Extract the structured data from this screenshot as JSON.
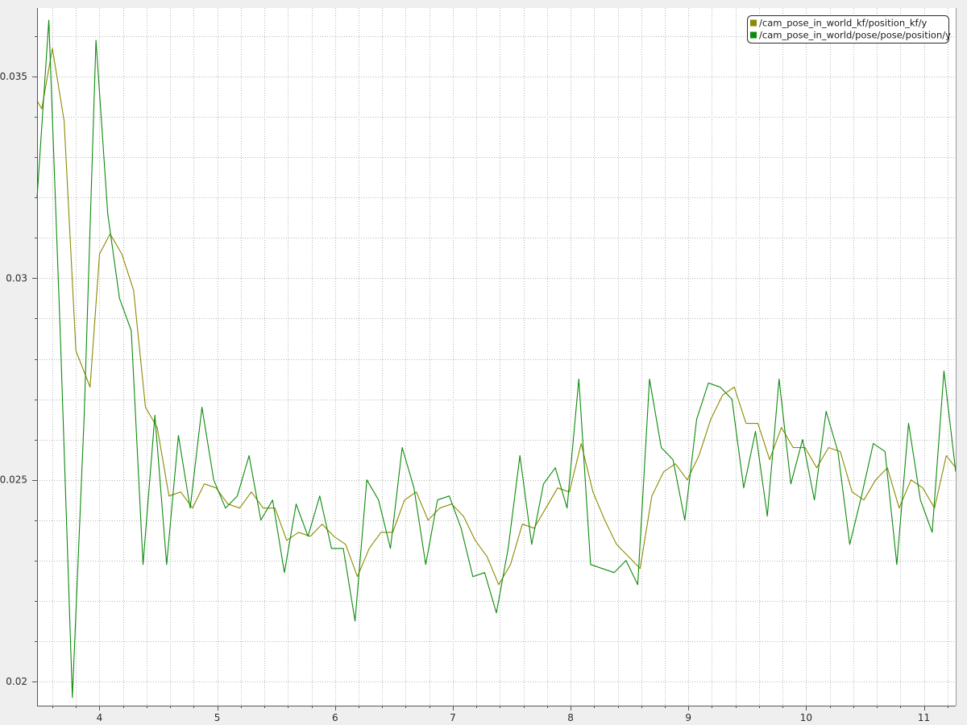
{
  "chart_data": {
    "type": "line",
    "title": "",
    "xlabel": "",
    "ylabel": "",
    "xlim": [
      3.47,
      11.27
    ],
    "ylim": [
      0.0194,
      0.0367
    ],
    "grid": true,
    "legend_position": "top-right",
    "x_ticks": [
      4,
      5,
      6,
      7,
      8,
      9,
      10,
      11
    ],
    "x_tick_labels": [
      "4",
      "5",
      "6",
      "7",
      "8",
      "9",
      "10",
      "11"
    ],
    "y_ticks": [
      0.02,
      0.025,
      0.03,
      0.035
    ],
    "y_tick_labels": [
      "0.02",
      "0.025",
      "0.03",
      "0.035"
    ],
    "series": [
      {
        "name": "/cam_pose_in_world_kf/position_kf/y",
        "color": "#8a8a00",
        "x": [
          3.47,
          3.51,
          3.6,
          3.7,
          3.8,
          3.92,
          4.0,
          4.09,
          4.19,
          4.29,
          4.39,
          4.49,
          4.59,
          4.69,
          4.79,
          4.89,
          4.99,
          5.09,
          5.19,
          5.29,
          5.39,
          5.49,
          5.59,
          5.69,
          5.79,
          5.89,
          5.99,
          6.09,
          6.19,
          6.29,
          6.39,
          6.49,
          6.59,
          6.69,
          6.79,
          6.89,
          6.99,
          7.09,
          7.19,
          7.29,
          7.39,
          7.49,
          7.59,
          7.69,
          7.79,
          7.89,
          7.99,
          8.09,
          8.19,
          8.29,
          8.39,
          8.49,
          8.59,
          8.69,
          8.79,
          8.89,
          8.99,
          9.09,
          9.19,
          9.29,
          9.39,
          9.49,
          9.59,
          9.69,
          9.79,
          9.89,
          9.99,
          10.09,
          10.19,
          10.29,
          10.39,
          10.49,
          10.59,
          10.69,
          10.79,
          10.89,
          10.99,
          11.09,
          11.19,
          11.27
        ],
        "y": [
          0.0344,
          0.0342,
          0.0357,
          0.0339,
          0.0282,
          0.0273,
          0.0306,
          0.0311,
          0.0306,
          0.0297,
          0.0268,
          0.0263,
          0.0246,
          0.0247,
          0.0243,
          0.0249,
          0.0248,
          0.0244,
          0.0243,
          0.0247,
          0.0243,
          0.0243,
          0.0235,
          0.0237,
          0.0236,
          0.0239,
          0.0236,
          0.0234,
          0.0226,
          0.0233,
          0.0237,
          0.0237,
          0.0245,
          0.0247,
          0.024,
          0.0243,
          0.0244,
          0.0241,
          0.0235,
          0.0231,
          0.0224,
          0.0229,
          0.0239,
          0.0238,
          0.0243,
          0.0248,
          0.0247,
          0.0259,
          0.0247,
          0.024,
          0.0234,
          0.0231,
          0.0228,
          0.0246,
          0.0252,
          0.0254,
          0.025,
          0.0256,
          0.0265,
          0.0271,
          0.0273,
          0.0264,
          0.0264,
          0.0255,
          0.0263,
          0.0258,
          0.0258,
          0.0253,
          0.0258,
          0.0257,
          0.0247,
          0.0245,
          0.025,
          0.0253,
          0.0243,
          0.025,
          0.0248,
          0.0243,
          0.0256,
          0.0253
        ]
      },
      {
        "name": "/cam_pose_in_world/pose/pose/position/y",
        "color": "#0c8a0c",
        "x": [
          3.47,
          3.57,
          3.67,
          3.77,
          3.87,
          3.97,
          4.07,
          4.17,
          4.27,
          4.37,
          4.47,
          4.57,
          4.67,
          4.77,
          4.87,
          4.97,
          5.07,
          5.17,
          5.27,
          5.37,
          5.47,
          5.57,
          5.67,
          5.77,
          5.87,
          5.97,
          6.07,
          6.17,
          6.27,
          6.37,
          6.47,
          6.57,
          6.67,
          6.77,
          6.87,
          6.97,
          7.07,
          7.17,
          7.27,
          7.37,
          7.47,
          7.57,
          7.67,
          7.77,
          7.87,
          7.97,
          8.07,
          8.17,
          8.27,
          8.37,
          8.47,
          8.57,
          8.67,
          8.77,
          8.87,
          8.97,
          9.07,
          9.17,
          9.27,
          9.37,
          9.47,
          9.57,
          9.67,
          9.77,
          9.87,
          9.97,
          10.07,
          10.17,
          10.27,
          10.37,
          10.47,
          10.57,
          10.67,
          10.77,
          10.87,
          10.97,
          11.07,
          11.17,
          11.27
        ],
        "y": [
          0.032,
          0.0364,
          0.0284,
          0.0196,
          0.0266,
          0.0359,
          0.0316,
          0.0295,
          0.0287,
          0.0229,
          0.0266,
          0.0229,
          0.0261,
          0.0243,
          0.0268,
          0.025,
          0.0243,
          0.0246,
          0.0256,
          0.024,
          0.0245,
          0.0227,
          0.0244,
          0.0236,
          0.0246,
          0.0233,
          0.0233,
          0.0215,
          0.025,
          0.0245,
          0.0233,
          0.0258,
          0.0248,
          0.0229,
          0.0245,
          0.0246,
          0.0238,
          0.0226,
          0.0227,
          0.0217,
          0.0233,
          0.0256,
          0.0234,
          0.0249,
          0.0253,
          0.0243,
          0.0275,
          0.0229,
          0.0228,
          0.0227,
          0.023,
          0.0224,
          0.0275,
          0.0258,
          0.0255,
          0.024,
          0.0265,
          0.0274,
          0.0273,
          0.027,
          0.0248,
          0.0262,
          0.0241,
          0.0275,
          0.0249,
          0.026,
          0.0245,
          0.0267,
          0.0257,
          0.0234,
          0.0246,
          0.0259,
          0.0257,
          0.0229,
          0.0264,
          0.0245,
          0.0237,
          0.0277,
          0.0252
        ]
      }
    ]
  }
}
